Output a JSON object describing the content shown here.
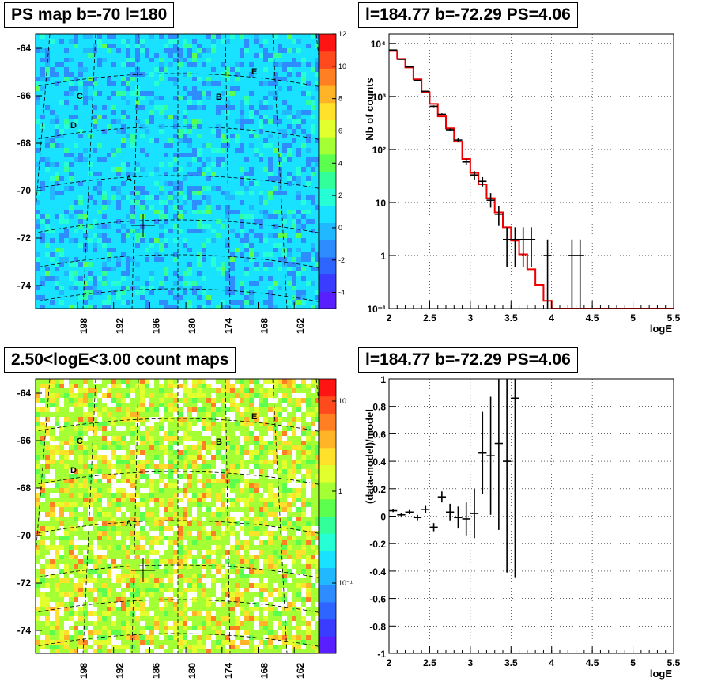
{
  "panels": {
    "ps_map": {
      "title": "PS map b=-70 l=180",
      "y_ticks": [
        "-64",
        "-66",
        "-68",
        "-70",
        "-72",
        "-74"
      ],
      "x_ticks": [
        "198",
        "192",
        "186",
        "180",
        "174",
        "168",
        "162"
      ],
      "colorbar_ticks": [
        "12",
        "10",
        "8",
        "6",
        "4",
        "2",
        "0",
        "-2",
        "-4"
      ],
      "sources": [
        "A",
        "B",
        "C",
        "D",
        "E"
      ]
    },
    "count_map": {
      "title": "2.50<logE<3.00 count maps",
      "y_ticks": [
        "-64",
        "-66",
        "-68",
        "-70",
        "-72",
        "-74"
      ],
      "x_ticks": [
        "198",
        "192",
        "186",
        "180",
        "174",
        "168",
        "162"
      ],
      "colorbar_ticks": [
        "10",
        "1",
        "10⁻¹"
      ],
      "sources": [
        "A",
        "B",
        "C",
        "D",
        "E"
      ]
    },
    "spectrum": {
      "title": "l=184.77 b=-72.29 PS=4.06"
    },
    "residual": {
      "title": "l=184.77 b=-72.29 PS=4.06"
    }
  },
  "chart_data": [
    {
      "type": "heatmap",
      "title": "PS map b=-70 l=180",
      "xlabel": "",
      "ylabel": "",
      "x_tick_labels": [
        "198",
        "192",
        "186",
        "180",
        "174",
        "168",
        "162"
      ],
      "y_tick_labels": [
        "-64",
        "-66",
        "-68",
        "-70",
        "-72",
        "-74"
      ],
      "colorbar_range": [
        -5,
        12
      ],
      "colorbar_ticks": [
        12,
        10,
        8,
        6,
        4,
        2,
        0,
        -2,
        -4
      ],
      "source_labels": [
        "A",
        "B",
        "C",
        "D",
        "E"
      ],
      "grid": true
    },
    {
      "type": "heatmap",
      "title": "2.50<logE<3.00 count maps",
      "xlabel": "",
      "ylabel": "",
      "x_tick_labels": [
        "198",
        "192",
        "186",
        "180",
        "174",
        "168",
        "162"
      ],
      "y_tick_labels": [
        "-64",
        "-66",
        "-68",
        "-70",
        "-72",
        "-74"
      ],
      "colorbar_scale": "log",
      "colorbar_ticks": [
        "10",
        "1",
        "10⁻¹"
      ],
      "source_labels": [
        "A",
        "B",
        "C",
        "D",
        "E"
      ],
      "grid": true
    },
    {
      "type": "line",
      "title": "l=184.77 b=-72.29 PS=4.06",
      "xlabel": "logE",
      "ylabel": "Nb of counts",
      "xlim": [
        2,
        5.5
      ],
      "ylim": [
        0.1,
        15000
      ],
      "yscale": "log",
      "x_tick_labels": [
        "2",
        "2.5",
        "3",
        "3.5",
        "4",
        "4.5",
        "5",
        "5.5"
      ],
      "y_tick_labels": [
        "10⁻¹",
        "1",
        "10",
        "10²",
        "10³",
        "10⁴"
      ],
      "grid": true,
      "series": [
        {
          "kind": "data",
          "color": "#000000",
          "points": [
            {
              "x": 2.05,
              "y": 7500,
              "lo": 7400,
              "hi": 7600
            },
            {
              "x": 2.15,
              "y": 5000,
              "lo": 4900,
              "hi": 5100
            },
            {
              "x": 2.25,
              "y": 3600,
              "lo": 3540,
              "hi": 3660
            },
            {
              "x": 2.35,
              "y": 2000,
              "lo": 1955,
              "hi": 2045
            },
            {
              "x": 2.45,
              "y": 1250,
              "lo": 1215,
              "hi": 1285
            },
            {
              "x": 2.55,
              "y": 650,
              "lo": 625,
              "hi": 675
            },
            {
              "x": 2.65,
              "y": 460,
              "lo": 440,
              "hi": 480
            },
            {
              "x": 2.75,
              "y": 235,
              "lo": 220,
              "hi": 250
            },
            {
              "x": 2.85,
              "y": 150,
              "lo": 138,
              "hi": 162
            },
            {
              "x": 2.95,
              "y": 58,
              "lo": 51,
              "hi": 66
            },
            {
              "x": 3.05,
              "y": 33,
              "lo": 27,
              "hi": 39
            },
            {
              "x": 3.15,
              "y": 25,
              "lo": 20,
              "hi": 30
            },
            {
              "x": 3.25,
              "y": 11,
              "lo": 8,
              "hi": 15
            },
            {
              "x": 3.35,
              "y": 6,
              "lo": 3.6,
              "hi": 8.5
            },
            {
              "x": 3.45,
              "y": 2,
              "lo": 0.6,
              "hi": 3.4
            },
            {
              "x": 3.55,
              "y": 2,
              "lo": 0.6,
              "hi": 3.4
            },
            {
              "x": 3.65,
              "y": 2,
              "lo": 0.6,
              "hi": 3.4
            },
            {
              "x": 3.75,
              "y": 2,
              "lo": 0.6,
              "hi": 3.4
            },
            {
              "x": 3.95,
              "y": 1,
              "lo": 0.1,
              "hi": 2
            },
            {
              "x": 4.25,
              "y": 1,
              "lo": 0.1,
              "hi": 2
            },
            {
              "x": 4.35,
              "y": 1,
              "lo": 0.1,
              "hi": 2
            }
          ]
        },
        {
          "kind": "model",
          "color": "#ee0000",
          "bin_edges": [
            2.0,
            2.1,
            2.2,
            2.3,
            2.4,
            2.5,
            2.6,
            2.7,
            2.8,
            2.9,
            3.0,
            3.1,
            3.2,
            3.3,
            3.4,
            3.5,
            3.6,
            3.7,
            3.8,
            3.9,
            4.0,
            5.5
          ],
          "values": [
            7200,
            5100,
            3500,
            2100,
            1200,
            720,
            420,
            250,
            140,
            66,
            36,
            22,
            12,
            6.5,
            3.4,
            1.9,
            1.05,
            0.55,
            0.28,
            0.14,
            0.1
          ]
        }
      ]
    },
    {
      "type": "scatter",
      "title": "l=184.77 b=-72.29 PS=4.06",
      "xlabel": "logE",
      "ylabel": "(data-model)/model",
      "xlim": [
        2,
        5.5
      ],
      "ylim": [
        -1,
        1
      ],
      "x_tick_labels": [
        "2",
        "2.5",
        "3",
        "3.5",
        "4",
        "4.5",
        "5",
        "5.5"
      ],
      "y_tick_labels": [
        "1",
        "0.8",
        "0.6",
        "0.4",
        "0.2",
        "0",
        "-0.2",
        "-0.4",
        "-0.6",
        "-0.8",
        "-1"
      ],
      "grid": true,
      "points": [
        {
          "x": 2.05,
          "y": 0.04,
          "err": 0.01
        },
        {
          "x": 2.15,
          "y": 0.01,
          "err": 0.012
        },
        {
          "x": 2.25,
          "y": 0.03,
          "err": 0.015
        },
        {
          "x": 2.35,
          "y": -0.01,
          "err": 0.02
        },
        {
          "x": 2.45,
          "y": 0.05,
          "err": 0.025
        },
        {
          "x": 2.55,
          "y": -0.08,
          "err": 0.03
        },
        {
          "x": 2.65,
          "y": 0.14,
          "err": 0.04
        },
        {
          "x": 2.75,
          "y": 0.03,
          "err": 0.06
        },
        {
          "x": 2.85,
          "y": -0.01,
          "err": 0.08
        },
        {
          "x": 2.95,
          "y": -0.02,
          "err": 0.12
        },
        {
          "x": 3.05,
          "y": 0.02,
          "err": 0.18
        },
        {
          "x": 3.15,
          "y": 0.46,
          "err": 0.3
        },
        {
          "x": 3.25,
          "y": 0.44,
          "err": 0.43
        },
        {
          "x": 3.35,
          "y": 0.53,
          "err": 0.63
        },
        {
          "x": 3.45,
          "y": 0.4,
          "err": 0.81
        },
        {
          "x": 3.55,
          "y": 0.86,
          "err": 1.31
        }
      ]
    }
  ]
}
